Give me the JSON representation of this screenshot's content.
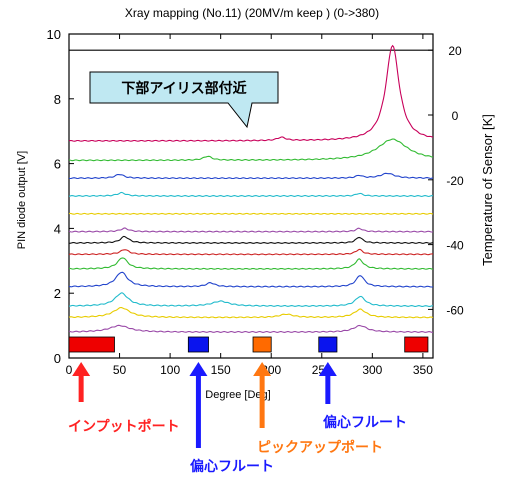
{
  "chart_data": {
    "type": "line",
    "title": "Xray mapping (No.11) (20MV/m keep ) (0->380)",
    "xlabel": "Degree [Deg]",
    "ylabel": "PIN diode output  [V]",
    "y2label": "Temperature of Sensor [K]",
    "xlim": [
      0,
      360
    ],
    "ylim": [
      0,
      10
    ],
    "y2lim": [
      -75,
      25
    ],
    "x_ticks": [
      "0",
      "50",
      "100",
      "150",
      "200",
      "250",
      "300",
      "350"
    ],
    "y_ticks": [
      "0",
      "2",
      "4",
      "6",
      "8",
      "10"
    ],
    "y2_ticks": [
      "20",
      "0",
      "-20",
      "-40",
      "-60"
    ],
    "grid": false,
    "reference_line": {
      "y": 9.5,
      "color": "#000000"
    },
    "series": [
      {
        "color": "#c8005a",
        "base": 6.7,
        "peaks": [
          [
            320,
            2.95,
            8
          ],
          [
            210,
            0.1,
            5
          ]
        ]
      },
      {
        "color": "#33bb33",
        "base": 6.1,
        "peaks": [
          [
            320,
            0.65,
            18
          ],
          [
            137,
            0.12,
            5
          ]
        ]
      },
      {
        "color": "#2244cc",
        "base": 5.55,
        "peaks": [
          [
            50,
            0.12,
            5
          ],
          [
            315,
            0.15,
            8
          ],
          [
            287,
            0.08,
            4
          ]
        ]
      },
      {
        "color": "#22bbcc",
        "base": 5.0,
        "peaks": [
          [
            52,
            0.1,
            5
          ],
          [
            287,
            0.08,
            4
          ]
        ]
      },
      {
        "color": "#e8cc00",
        "base": 4.45,
        "peaks": []
      },
      {
        "color": "#9a4aa8",
        "base": 3.9,
        "peaks": [
          [
            55,
            0.1,
            5
          ],
          [
            287,
            0.1,
            4
          ]
        ]
      },
      {
        "color": "#111111",
        "base": 3.55,
        "peaks": [
          [
            55,
            0.2,
            5
          ],
          [
            287,
            0.18,
            4
          ]
        ]
      },
      {
        "color": "#cc2222",
        "base": 3.2,
        "peaks": [
          [
            55,
            0.15,
            5
          ],
          [
            287,
            0.15,
            4
          ]
        ]
      },
      {
        "color": "#33bb33",
        "base": 2.75,
        "peaks": [
          [
            53,
            0.35,
            6
          ],
          [
            287,
            0.3,
            5
          ]
        ]
      },
      {
        "color": "#2244cc",
        "base": 2.2,
        "peaks": [
          [
            52,
            0.45,
            7
          ],
          [
            288,
            0.35,
            5
          ],
          [
            140,
            0.12,
            5
          ]
        ]
      },
      {
        "color": "#22bbcc",
        "base": 1.6,
        "peaks": [
          [
            52,
            0.4,
            8
          ],
          [
            150,
            0.15,
            10
          ],
          [
            288,
            0.3,
            6
          ]
        ]
      },
      {
        "color": "#e8cc00",
        "base": 1.25,
        "peaks": [
          [
            52,
            0.3,
            10
          ],
          [
            288,
            0.25,
            7
          ],
          [
            215,
            0.1,
            8
          ]
        ]
      },
      {
        "color": "#9a4aa8",
        "base": 0.8,
        "peaks": [
          [
            50,
            0.2,
            12
          ],
          [
            288,
            0.2,
            8
          ]
        ]
      }
    ],
    "position_markers": [
      {
        "x0": 0,
        "x1": 45,
        "color": "#ee0000"
      },
      {
        "x0": 118,
        "x1": 138,
        "color": "#0a14ee"
      },
      {
        "x0": 182,
        "x1": 200,
        "color": "#ff6a00"
      },
      {
        "x0": 247,
        "x1": 265,
        "color": "#0a14ee"
      },
      {
        "x0": 332,
        "x1": 355,
        "color": "#ee0000"
      }
    ],
    "annotations": [
      {
        "text": "下部アイリス部付近",
        "color": "#000000",
        "box_fill": "#bfe8f2"
      },
      {
        "text": "インプットポート",
        "color": "#ff2222",
        "arrow_x": 12
      },
      {
        "text": "偏心フルート",
        "color": "#1a1aff",
        "arrow_x": 128
      },
      {
        "text": "ピックアップポート",
        "color": "#ff7711",
        "arrow_x": 191
      },
      {
        "text": "偏心フルート",
        "color": "#1a1aff",
        "arrow_x": 256
      }
    ]
  }
}
